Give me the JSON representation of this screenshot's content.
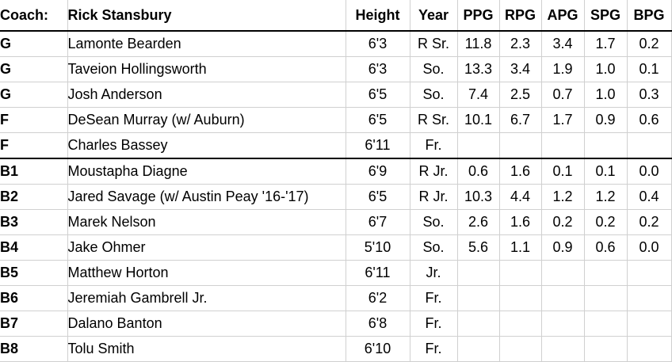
{
  "header": {
    "coach_label": "Coach:",
    "coach_name": "Rick Stansbury",
    "height": "Height",
    "year": "Year",
    "ppg": "PPG",
    "rpg": "RPG",
    "apg": "APG",
    "spg": "SPG",
    "bpg": "BPG"
  },
  "starters": [
    {
      "pos": "G",
      "name": "Lamonte Bearden",
      "height": "6'3",
      "year": "R Sr.",
      "ppg": "11.8",
      "rpg": "2.3",
      "apg": "3.4",
      "spg": "1.7",
      "bpg": "0.2"
    },
    {
      "pos": "G",
      "name": "Taveion Hollingsworth",
      "height": "6'3",
      "year": "So.",
      "ppg": "13.3",
      "rpg": "3.4",
      "apg": "1.9",
      "spg": "1.0",
      "bpg": "0.1"
    },
    {
      "pos": "G",
      "name": "Josh Anderson",
      "height": "6'5",
      "year": "So.",
      "ppg": "7.4",
      "rpg": "2.5",
      "apg": "0.7",
      "spg": "1.0",
      "bpg": "0.3"
    },
    {
      "pos": "F",
      "name": "DeSean Murray (w/ Auburn)",
      "height": "6'5",
      "year": "R Sr.",
      "ppg": "10.1",
      "rpg": "6.7",
      "apg": "1.7",
      "spg": "0.9",
      "bpg": "0.6"
    },
    {
      "pos": "F",
      "name": "Charles Bassey",
      "height": "6'11",
      "year": "Fr.",
      "ppg": "",
      "rpg": "",
      "apg": "",
      "spg": "",
      "bpg": ""
    }
  ],
  "bench": [
    {
      "pos": "B1",
      "name": "Moustapha Diagne",
      "height": "6'9",
      "year": "R Jr.",
      "ppg": "0.6",
      "rpg": "1.6",
      "apg": "0.1",
      "spg": "0.1",
      "bpg": "0.0"
    },
    {
      "pos": "B2",
      "name": "Jared Savage (w/ Austin Peay '16-'17)",
      "height": "6'5",
      "year": "R Jr.",
      "ppg": "10.3",
      "rpg": "4.4",
      "apg": "1.2",
      "spg": "1.2",
      "bpg": "0.4"
    },
    {
      "pos": "B3",
      "name": "Marek Nelson",
      "height": "6'7",
      "year": "So.",
      "ppg": "2.6",
      "rpg": "1.6",
      "apg": "0.2",
      "spg": "0.2",
      "bpg": "0.2"
    },
    {
      "pos": "B4",
      "name": "Jake Ohmer",
      "height": "5'10",
      "year": "So.",
      "ppg": "5.6",
      "rpg": "1.1",
      "apg": "0.9",
      "spg": "0.6",
      "bpg": "0.0"
    },
    {
      "pos": "B5",
      "name": "Matthew Horton",
      "height": "6'11",
      "year": "Jr.",
      "ppg": "",
      "rpg": "",
      "apg": "",
      "spg": "",
      "bpg": ""
    },
    {
      "pos": "B6",
      "name": "Jeremiah Gambrell Jr.",
      "height": "6'2",
      "year": "Fr.",
      "ppg": "",
      "rpg": "",
      "apg": "",
      "spg": "",
      "bpg": ""
    },
    {
      "pos": "B7",
      "name": "Dalano Banton",
      "height": "6'8",
      "year": "Fr.",
      "ppg": "",
      "rpg": "",
      "apg": "",
      "spg": "",
      "bpg": ""
    },
    {
      "pos": "B8",
      "name": "Tolu Smith",
      "height": "6'10",
      "year": "Fr.",
      "ppg": "",
      "rpg": "",
      "apg": "",
      "spg": "",
      "bpg": ""
    }
  ]
}
